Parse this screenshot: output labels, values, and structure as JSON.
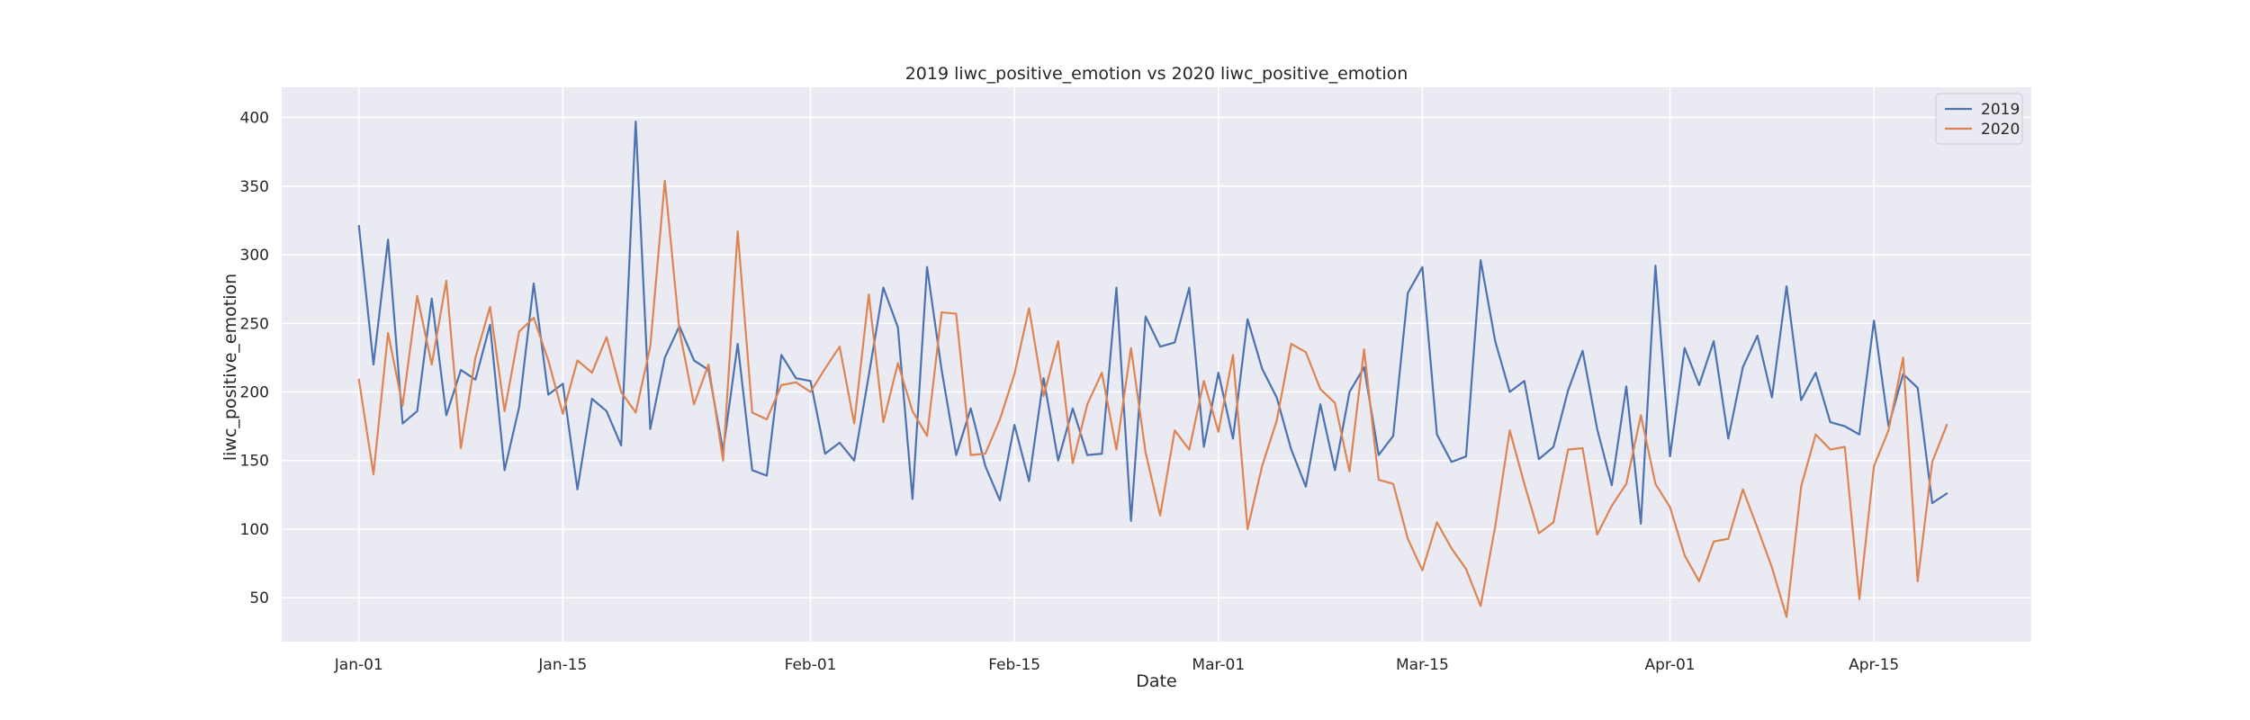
{
  "chart_data": {
    "type": "line",
    "title": "2019 liwc_positive_emotion vs 2020 liwc_positive_emotion",
    "xlabel": "Date",
    "ylabel": "liwc_positive_emotion",
    "x_start": "Jan-01",
    "x_ticks": [
      {
        "label": "Jan-01",
        "day": 0
      },
      {
        "label": "Jan-15",
        "day": 14
      },
      {
        "label": "Feb-01",
        "day": 31
      },
      {
        "label": "Feb-15",
        "day": 45
      },
      {
        "label": "Mar-01",
        "day": 59
      },
      {
        "label": "Mar-15",
        "day": 73
      },
      {
        "label": "Apr-01",
        "day": 90
      },
      {
        "label": "Apr-15",
        "day": 104
      }
    ],
    "xlim_days": [
      -5.3,
      114.8
    ],
    "ylim": [
      18,
      422
    ],
    "y_ticks": [
      50,
      100,
      150,
      200,
      250,
      300,
      350,
      400
    ],
    "grid": true,
    "legend_position": "top-right",
    "series": [
      {
        "name": "2019",
        "color": "#4c72b0",
        "values": [
          321,
          220,
          311,
          177,
          186,
          268,
          183,
          216,
          209,
          249,
          143,
          189,
          279,
          198,
          206,
          129,
          195,
          186,
          161,
          397,
          173,
          225,
          248,
          223,
          216,
          157,
          235,
          143,
          139,
          227,
          210,
          208,
          155,
          163,
          150,
          212,
          276,
          247,
          122,
          291,
          216,
          154,
          188,
          146,
          121,
          176,
          135,
          210,
          150,
          188,
          154,
          155,
          276,
          106,
          255,
          233,
          236,
          276,
          160,
          214,
          166,
          253,
          217,
          196,
          158,
          131,
          191,
          143,
          200,
          218,
          154,
          168,
          272,
          291,
          169,
          149,
          153,
          296,
          237,
          200,
          208,
          151,
          160,
          201,
          230,
          173,
          132,
          204,
          104,
          292,
          153,
          232,
          205,
          237,
          166,
          218,
          241,
          196,
          277,
          194,
          214,
          178,
          175,
          169,
          252,
          175,
          213,
          203,
          119,
          126
        ]
      },
      {
        "name": "2020",
        "color": "#dd8452",
        "values": [
          209,
          140,
          243,
          190,
          270,
          220,
          281,
          159,
          225,
          262,
          186,
          244,
          254,
          223,
          184,
          223,
          214,
          240,
          200,
          185,
          233,
          354,
          245,
          191,
          220,
          150,
          317,
          185,
          180,
          205,
          207,
          200,
          217,
          233,
          177,
          271,
          178,
          221,
          186,
          168,
          258,
          257,
          154,
          155,
          180,
          213,
          261,
          197,
          237,
          148,
          191,
          214,
          158,
          232,
          156,
          110,
          172,
          158,
          208,
          171,
          227,
          100,
          146,
          179,
          235,
          229,
          202,
          192,
          142,
          231,
          136,
          133,
          93,
          70,
          105,
          86,
          71,
          44,
          102,
          172,
          133,
          97,
          105,
          158,
          159,
          96,
          117,
          133,
          183,
          133,
          116,
          81,
          62,
          91,
          93,
          129,
          101,
          72,
          36,
          131,
          169,
          158,
          160,
          49,
          146,
          172,
          225,
          62,
          149,
          176
        ]
      }
    ]
  }
}
